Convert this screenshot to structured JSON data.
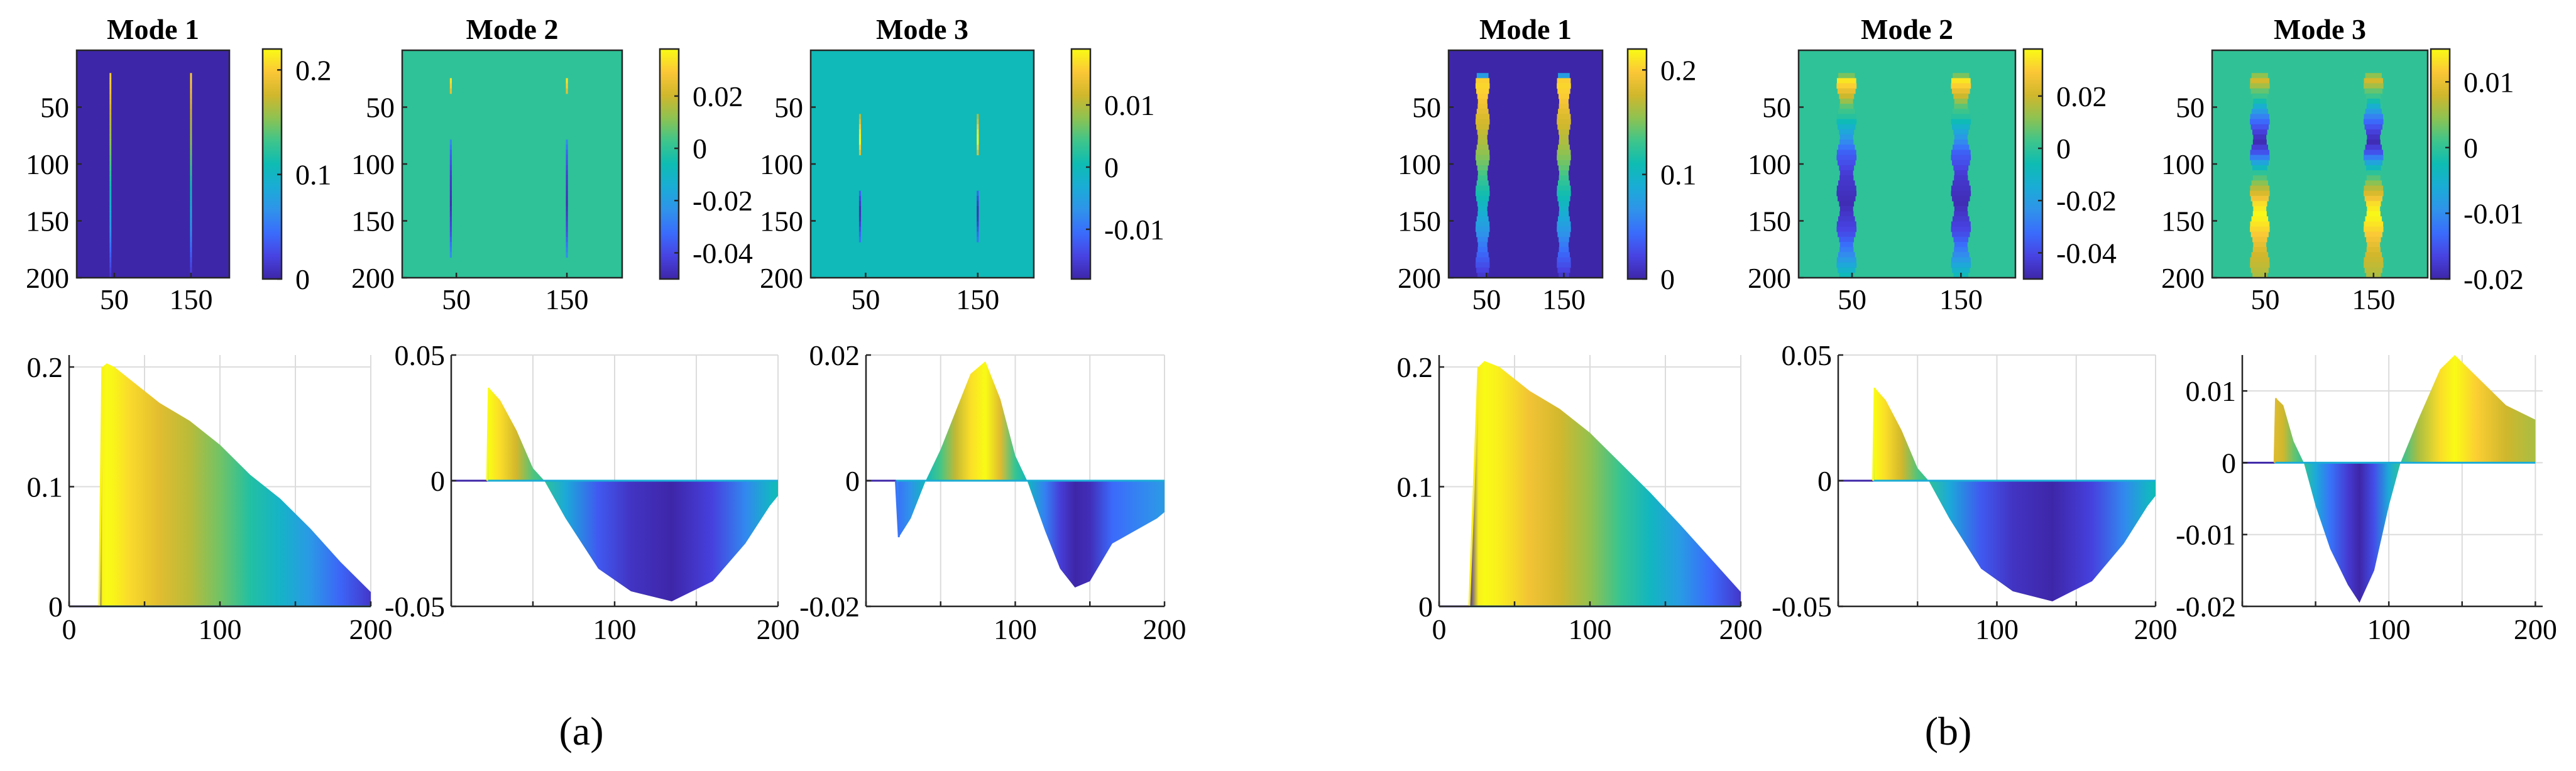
{
  "chart_data": [
    {
      "id": "a-img-1",
      "type": "heatmap",
      "group": "a",
      "title": "Mode 1",
      "xticks": [
        50,
        150
      ],
      "yticks": [
        50,
        100,
        150,
        200
      ],
      "cbar_ticks": [
        "0.2",
        "0.1",
        "0"
      ],
      "cbar_values": [
        0.2,
        0.1,
        0
      ],
      "clim": [
        0,
        0.22
      ],
      "bands": "thin",
      "profile": {
        "ymin": 0,
        "ymax": 0.22,
        "pts": [
          [
            20,
            0
          ],
          [
            22,
            0.2
          ],
          [
            25,
            0.203
          ],
          [
            30,
            0.2
          ],
          [
            40,
            0.19
          ],
          [
            60,
            0.17
          ],
          [
            80,
            0.155
          ],
          [
            100,
            0.135
          ],
          [
            120,
            0.11
          ],
          [
            140,
            0.09
          ],
          [
            160,
            0.065
          ],
          [
            180,
            0.037
          ],
          [
            200,
            0.012
          ]
        ]
      }
    },
    {
      "id": "a-img-2",
      "type": "heatmap",
      "group": "a",
      "title": "Mode 2",
      "xticks": [
        50,
        150
      ],
      "yticks": [
        50,
        100,
        150,
        200
      ],
      "cbar_ticks": [
        "0.02",
        "0",
        "-0.02",
        "-0.04"
      ],
      "cbar_values": [
        0.02,
        0,
        -0.02,
        -0.04
      ],
      "clim": [
        -0.05,
        0.038
      ],
      "bands": "faint",
      "profile": {
        "ymin": -0.05,
        "ymax": 0.038,
        "pts": [
          [
            22,
            0
          ],
          [
            23,
            0.037
          ],
          [
            30,
            0.032
          ],
          [
            40,
            0.02
          ],
          [
            50,
            0.005
          ],
          [
            57,
            0
          ],
          [
            70,
            -0.015
          ],
          [
            90,
            -0.035
          ],
          [
            110,
            -0.044
          ],
          [
            135,
            -0.048
          ],
          [
            160,
            -0.04
          ],
          [
            180,
            -0.025
          ],
          [
            195,
            -0.01
          ],
          [
            200,
            -0.006
          ]
        ]
      }
    },
    {
      "id": "a-img-3",
      "type": "heatmap",
      "group": "a",
      "title": "Mode 3",
      "xticks": [
        50,
        150
      ],
      "yticks": [
        50,
        100,
        150,
        200
      ],
      "cbar_ticks": [
        "0.01",
        "0",
        "-0.01"
      ],
      "cbar_values": [
        0.01,
        0,
        -0.01
      ],
      "clim": [
        -0.018,
        0.019
      ],
      "bands": "faint",
      "profile": {
        "ymin": -0.018,
        "ymax": 0.019,
        "pts": [
          [
            20,
            -0.002
          ],
          [
            22,
            -0.009
          ],
          [
            30,
            -0.006
          ],
          [
            40,
            0
          ],
          [
            50,
            0.005
          ],
          [
            60,
            0.011
          ],
          [
            70,
            0.017
          ],
          [
            80,
            0.019
          ],
          [
            90,
            0.013
          ],
          [
            100,
            0.004
          ],
          [
            108,
            0
          ],
          [
            120,
            -0.008
          ],
          [
            130,
            -0.014
          ],
          [
            140,
            -0.017
          ],
          [
            150,
            -0.016
          ],
          [
            165,
            -0.01
          ],
          [
            180,
            -0.008
          ],
          [
            195,
            -0.006
          ],
          [
            200,
            -0.005
          ]
        ]
      }
    },
    {
      "id": "b-img-1",
      "type": "heatmap",
      "group": "b",
      "title": "Mode 1",
      "xticks": [
        50,
        150
      ],
      "yticks": [
        50,
        100,
        150,
        200
      ],
      "cbar_ticks": [
        "0.2",
        "0.1",
        "0"
      ],
      "cbar_values": [
        0.2,
        0.1,
        0
      ],
      "clim": [
        0,
        0.22
      ],
      "bands": "wide",
      "profile": {
        "ymin": 0,
        "ymax": 0.22,
        "pts": [
          [
            20,
            0
          ],
          [
            26,
            0.2
          ],
          [
            30,
            0.205
          ],
          [
            40,
            0.2
          ],
          [
            60,
            0.18
          ],
          [
            80,
            0.165
          ],
          [
            100,
            0.145
          ],
          [
            120,
            0.12
          ],
          [
            140,
            0.095
          ],
          [
            160,
            0.068
          ],
          [
            180,
            0.04
          ],
          [
            200,
            0.012
          ]
        ]
      }
    },
    {
      "id": "b-img-2",
      "type": "heatmap",
      "group": "b",
      "title": "Mode 2",
      "xticks": [
        50,
        150
      ],
      "yticks": [
        50,
        100,
        150,
        200
      ],
      "cbar_ticks": [
        "0.02",
        "0",
        "-0.02",
        "-0.04"
      ],
      "cbar_values": [
        0.02,
        0,
        -0.02,
        -0.04
      ],
      "clim": [
        -0.05,
        0.038
      ],
      "bands": "wide",
      "profile": {
        "ymin": -0.05,
        "ymax": 0.038,
        "pts": [
          [
            22,
            0
          ],
          [
            23,
            0.037
          ],
          [
            30,
            0.032
          ],
          [
            40,
            0.02
          ],
          [
            50,
            0.005
          ],
          [
            57,
            0
          ],
          [
            70,
            -0.015
          ],
          [
            90,
            -0.035
          ],
          [
            110,
            -0.044
          ],
          [
            135,
            -0.048
          ],
          [
            160,
            -0.04
          ],
          [
            180,
            -0.025
          ],
          [
            195,
            -0.01
          ],
          [
            200,
            -0.006
          ]
        ]
      }
    },
    {
      "id": "b-img-3",
      "type": "heatmap",
      "group": "b",
      "title": "Mode 3",
      "xticks": [
        50,
        150
      ],
      "yticks": [
        50,
        100,
        150,
        200
      ],
      "cbar_ticks": [
        "0.01",
        "0",
        "-0.01",
        "-0.02"
      ],
      "cbar_values": [
        0.01,
        0,
        -0.01,
        -0.02
      ],
      "clim": [
        -0.02,
        0.015
      ],
      "bands": "wide",
      "profile": {
        "ymin": -0.02,
        "ymax": 0.015,
        "pts": [
          [
            22,
            0.003
          ],
          [
            23,
            0.009
          ],
          [
            28,
            0.008
          ],
          [
            35,
            0.003
          ],
          [
            42,
            0
          ],
          [
            50,
            -0.006
          ],
          [
            60,
            -0.012
          ],
          [
            72,
            -0.017
          ],
          [
            80,
            -0.0195
          ],
          [
            90,
            -0.015
          ],
          [
            100,
            -0.006
          ],
          [
            108,
            0
          ],
          [
            120,
            0.006
          ],
          [
            135,
            0.013
          ],
          [
            145,
            0.015
          ],
          [
            160,
            0.012
          ],
          [
            180,
            0.008
          ],
          [
            200,
            0.006
          ]
        ]
      }
    },
    {
      "id": "a-line-1",
      "type": "area",
      "group": "a",
      "xlim": [
        0,
        200
      ],
      "ylim": [
        0,
        0.21
      ],
      "xticks": [
        0,
        100,
        200
      ],
      "yticks": [
        0,
        0.1,
        0.2
      ],
      "ytick_labels": [
        "0",
        "0.1",
        "0.2"
      ],
      "x": [
        20,
        22,
        25,
        30,
        40,
        60,
        80,
        100,
        120,
        140,
        160,
        180,
        200
      ],
      "y": [
        0,
        0.2,
        0.203,
        0.2,
        0.19,
        0.17,
        0.155,
        0.135,
        0.11,
        0.09,
        0.065,
        0.037,
        0.012
      ]
    },
    {
      "id": "a-line-2",
      "type": "area",
      "group": "a",
      "xlim": [
        0,
        200
      ],
      "ylim": [
        -0.05,
        0.05
      ],
      "xticks": [
        100,
        200
      ],
      "yticks": [
        -0.05,
        0,
        0.05
      ],
      "ytick_labels": [
        "-0.05",
        "0",
        "0.05"
      ],
      "x": [
        22,
        23,
        30,
        40,
        50,
        57,
        70,
        90,
        110,
        135,
        160,
        180,
        195,
        200
      ],
      "y": [
        0,
        0.037,
        0.032,
        0.02,
        0.005,
        0,
        -0.015,
        -0.035,
        -0.044,
        -0.048,
        -0.04,
        -0.025,
        -0.01,
        -0.006
      ]
    },
    {
      "id": "a-line-3",
      "type": "area",
      "group": "a",
      "xlim": [
        0,
        200
      ],
      "ylim": [
        -0.02,
        0.02
      ],
      "xticks": [
        100,
        200
      ],
      "yticks": [
        -0.02,
        0,
        0.02
      ],
      "ytick_labels": [
        "-0.02",
        "0",
        "0.02"
      ],
      "x": [
        20,
        22,
        30,
        40,
        50,
        60,
        70,
        80,
        90,
        100,
        108,
        120,
        130,
        140,
        150,
        165,
        180,
        195,
        200
      ],
      "y": [
        -0.002,
        -0.009,
        -0.006,
        0,
        0.005,
        0.011,
        0.017,
        0.019,
        0.013,
        0.004,
        0,
        -0.008,
        -0.014,
        -0.017,
        -0.016,
        -0.01,
        -0.008,
        -0.006,
        -0.005
      ]
    },
    {
      "id": "b-line-1",
      "type": "area",
      "group": "b",
      "xlim": [
        0,
        200
      ],
      "ylim": [
        0,
        0.21
      ],
      "xticks": [
        0,
        100,
        200
      ],
      "yticks": [
        0,
        0.1,
        0.2
      ],
      "ytick_labels": [
        "0",
        "0.1",
        "0.2"
      ],
      "x": [
        20,
        26,
        30,
        40,
        60,
        80,
        100,
        120,
        140,
        160,
        180,
        200
      ],
      "y": [
        0,
        0.2,
        0.205,
        0.2,
        0.18,
        0.165,
        0.145,
        0.12,
        0.095,
        0.068,
        0.04,
        0.012
      ]
    },
    {
      "id": "b-line-2",
      "type": "area",
      "group": "b",
      "xlim": [
        0,
        200
      ],
      "ylim": [
        -0.05,
        0.05
      ],
      "xticks": [
        100,
        200
      ],
      "yticks": [
        -0.05,
        0,
        0.05
      ],
      "ytick_labels": [
        "-0.05",
        "0",
        "0.05"
      ],
      "x": [
        22,
        23,
        30,
        40,
        50,
        57,
        70,
        90,
        110,
        135,
        160,
        180,
        195,
        200
      ],
      "y": [
        0,
        0.037,
        0.032,
        0.02,
        0.005,
        0,
        -0.015,
        -0.035,
        -0.044,
        -0.048,
        -0.04,
        -0.025,
        -0.01,
        -0.006
      ]
    },
    {
      "id": "b-line-3",
      "type": "area",
      "group": "b",
      "xlim": [
        0,
        205
      ],
      "ylim": [
        -0.02,
        0.015
      ],
      "xticks": [
        100,
        200
      ],
      "yticks": [
        -0.02,
        -0.01,
        0,
        0.01
      ],
      "ytick_labels": [
        "-0.02",
        "-0.01",
        "0",
        "0.01"
      ],
      "x": [
        22,
        23,
        28,
        35,
        42,
        50,
        60,
        72,
        80,
        90,
        100,
        108,
        120,
        135,
        145,
        160,
        180,
        200
      ],
      "y": [
        0.003,
        0.009,
        0.008,
        0.003,
        0,
        -0.006,
        -0.012,
        -0.017,
        -0.0195,
        -0.015,
        -0.006,
        0,
        0.006,
        0.013,
        0.015,
        0.012,
        0.008,
        0.006
      ]
    }
  ],
  "panel_labels": {
    "a": "(a)",
    "b": "(b)"
  }
}
